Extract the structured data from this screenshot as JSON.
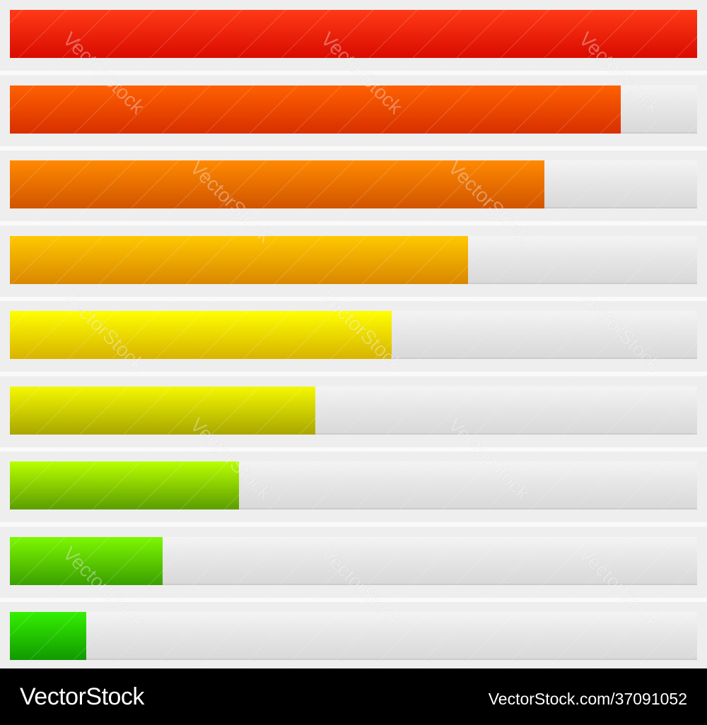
{
  "bars": [
    {
      "fraction": 1.0,
      "color_top": "#ff3a16",
      "color_bottom": "#d90b00"
    },
    {
      "fraction": 0.889,
      "color_top": "#ff6100",
      "color_bottom": "#d72f00"
    },
    {
      "fraction": 0.778,
      "color_top": "#ff8a00",
      "color_bottom": "#d15400"
    },
    {
      "fraction": 0.667,
      "color_top": "#ffc800",
      "color_bottom": "#d98700"
    },
    {
      "fraction": 0.556,
      "color_top": "#ffff00",
      "color_bottom": "#d7b300"
    },
    {
      "fraction": 0.444,
      "color_top": "#f5f800",
      "color_bottom": "#a8a600"
    },
    {
      "fraction": 0.333,
      "color_top": "#b8ff00",
      "color_bottom": "#5b9d00"
    },
    {
      "fraction": 0.222,
      "color_top": "#7df800",
      "color_bottom": "#3a9f00"
    },
    {
      "fraction": 0.111,
      "color_top": "#35f000",
      "color_bottom": "#109900"
    }
  ],
  "watermark": {
    "text": "VectorStock"
  },
  "footer": {
    "brand": "VectorStock",
    "image_id": "VectorStock.com/37091052"
  }
}
